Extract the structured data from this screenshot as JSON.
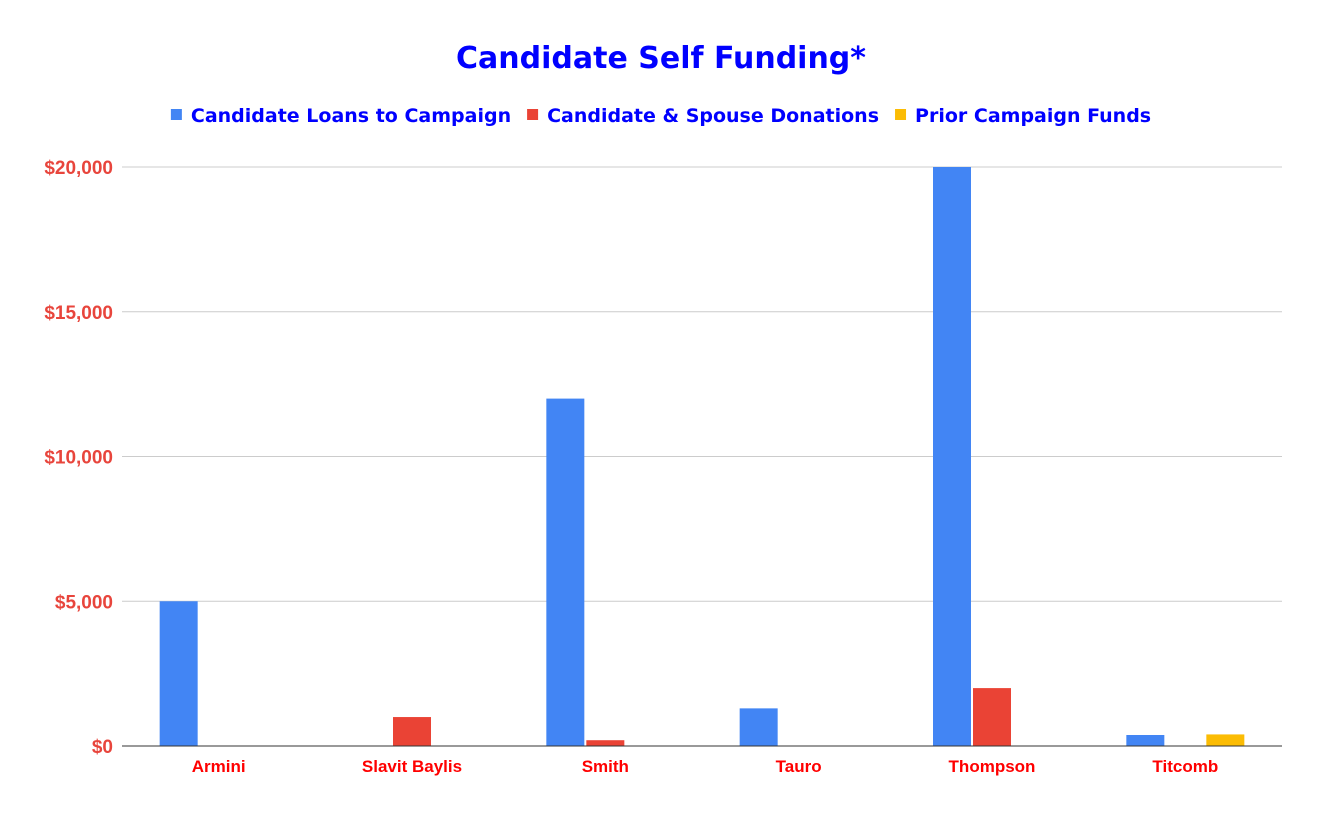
{
  "chart_data": {
    "type": "bar",
    "title": "Candidate Self Funding*",
    "xlabel": "",
    "ylabel": "",
    "categories": [
      "Armini",
      "Slavit Baylis",
      "Smith",
      "Tauro",
      "Thompson",
      "Titcomb"
    ],
    "series": [
      {
        "name": "Candidate Loans to Campaign",
        "color": "#4285f4",
        "values": [
          5000,
          0,
          12000,
          1300,
          20000,
          380
        ]
      },
      {
        "name": "Candidate & Spouse Donations",
        "color": "#ea4335",
        "values": [
          0,
          1000,
          200,
          0,
          2000,
          0
        ]
      },
      {
        "name": "Prior Campaign Funds",
        "color": "#fbbc04",
        "values": [
          0,
          0,
          0,
          0,
          0,
          400
        ]
      }
    ],
    "ylim": [
      0,
      20000
    ],
    "yticks": [
      0,
      5000,
      10000,
      15000,
      20000
    ],
    "ytick_labels": [
      "$0",
      "$5,000",
      "$10,000",
      "$15,000",
      "$20,000"
    ],
    "grid": true,
    "legend_position": "top-center",
    "colors": {
      "title": "#0000ff",
      "legend_text": "#0000ff",
      "ytick_text": "#e8453c",
      "xtick_text": "#ff0000",
      "gridline": "#cccccc",
      "baseline": "#333333"
    }
  }
}
